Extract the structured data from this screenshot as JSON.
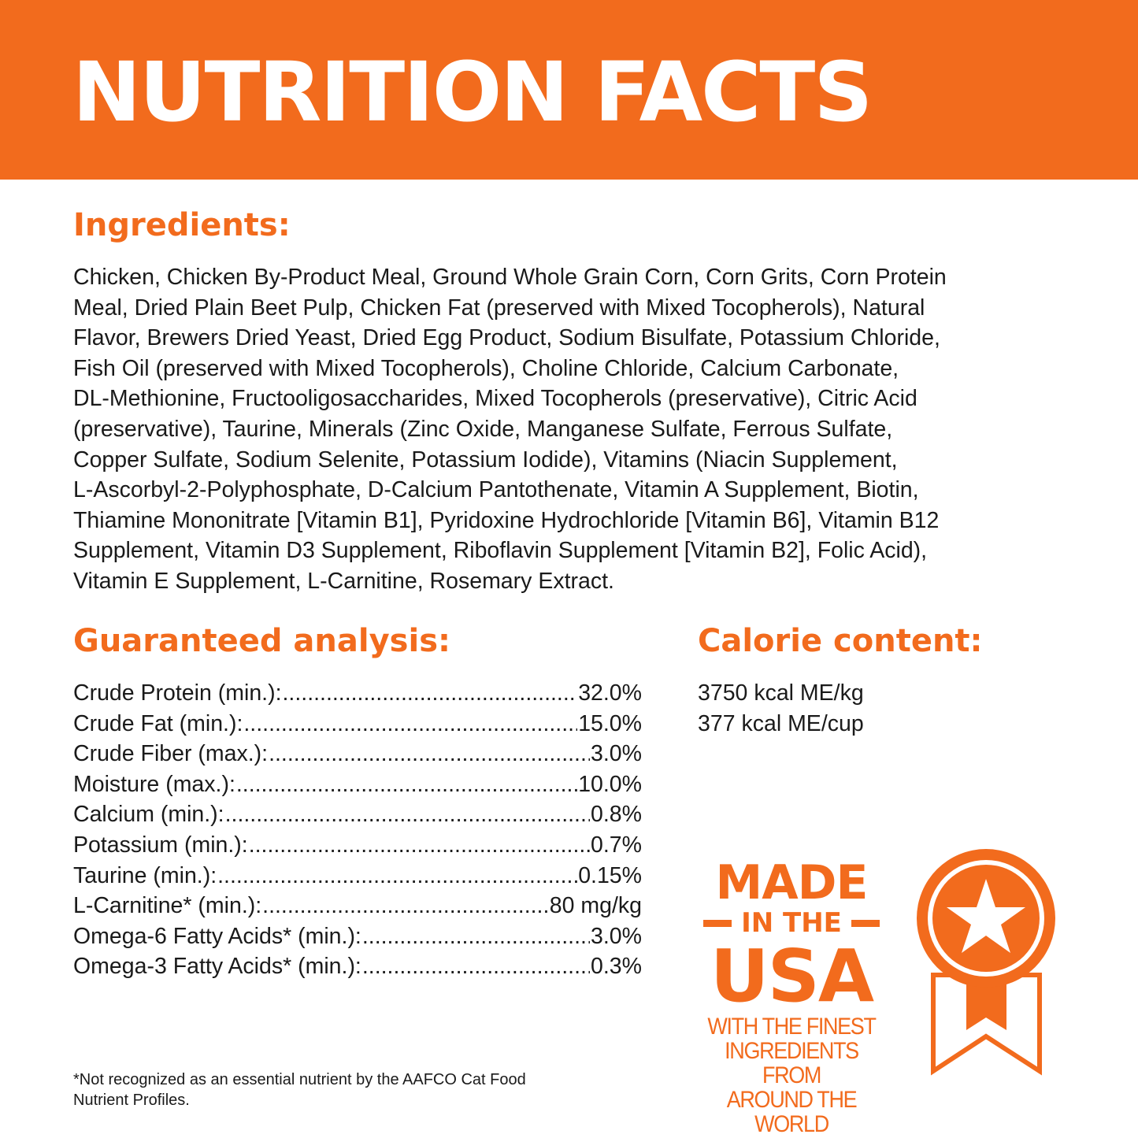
{
  "header": {
    "title": "NUTRITION FACTS"
  },
  "ingredients": {
    "title": "Ingredients:",
    "lines": [
      "Chicken, Chicken By-Product Meal, Ground Whole Grain Corn, Corn Grits, Corn Protein",
      "Meal, Dried Plain Beet Pulp, Chicken Fat (preserved with Mixed Tocopherols), Natural",
      "Flavor, Brewers Dried Yeast, Dried Egg Product, Sodium Bisulfate, Potassium Chloride,",
      "Fish Oil (preserved with Mixed Tocopherols), Choline Chloride, Calcium Carbonate,",
      "DL-Methionine, Fructooligosaccharides, Mixed Tocopherols (preservative), Citric Acid",
      "(preservative), Taurine, Minerals (Zinc Oxide, Manganese Sulfate, Ferrous Sulfate,",
      "Copper Sulfate, Sodium Selenite, Potassium Iodide), Vitamins (Niacin Supplement,",
      "L-Ascorbyl-2-Polyphosphate, D-Calcium Pantothenate, Vitamin A Supplement, Biotin,",
      "Thiamine Mononitrate [Vitamin B1], Pyridoxine Hydrochloride [Vitamin B6], Vitamin B12",
      "Supplement, Vitamin D3 Supplement, Riboflavin Supplement [Vitamin B2], Folic Acid),",
      "Vitamin E Supplement, L-Carnitine, Rosemary Extract."
    ]
  },
  "analysis": {
    "title": "Guaranteed analysis:",
    "rows": [
      {
        "label": "Crude Protein (min.):",
        "value": "32.0%"
      },
      {
        "label": "Crude Fat (min.):",
        "value": "15.0%"
      },
      {
        "label": "Crude Fiber (max.):",
        "value": "3.0%"
      },
      {
        "label": "Moisture (max.):",
        "value": "10.0%"
      },
      {
        "label": "Calcium (min.):",
        "value": "0.8%"
      },
      {
        "label": "Potassium (min.):",
        "value": "0.7%"
      },
      {
        "label": "Taurine (min.):",
        "value": "0.15%"
      },
      {
        "label": "L-Carnitine* (min.):",
        "value": "80 mg/kg"
      },
      {
        "label": "Omega-6 Fatty Acids* (min.):",
        "value": "3.0%"
      },
      {
        "label": "Omega-3 Fatty Acids* (min.):",
        "value": "0.3%"
      }
    ]
  },
  "calorie": {
    "title": "Calorie content:",
    "lines": [
      "3750 kcal ME/kg",
      "377 kcal ME/cup"
    ]
  },
  "badge": {
    "made": "MADE",
    "in_the": "IN THE",
    "usa": "USA",
    "tagline": [
      "WITH THE FINEST",
      "INGREDIENTS FROM",
      "AROUND THE WORLD"
    ],
    "icon": "medal-star-icon"
  },
  "footnote": [
    "*Not recognized as an essential nutrient by the AAFCO Cat Food",
    "Nutrient Profiles."
  ],
  "colors": {
    "accent": "#F26B1D",
    "text": "#1a1a1a",
    "background": "#ffffff"
  }
}
